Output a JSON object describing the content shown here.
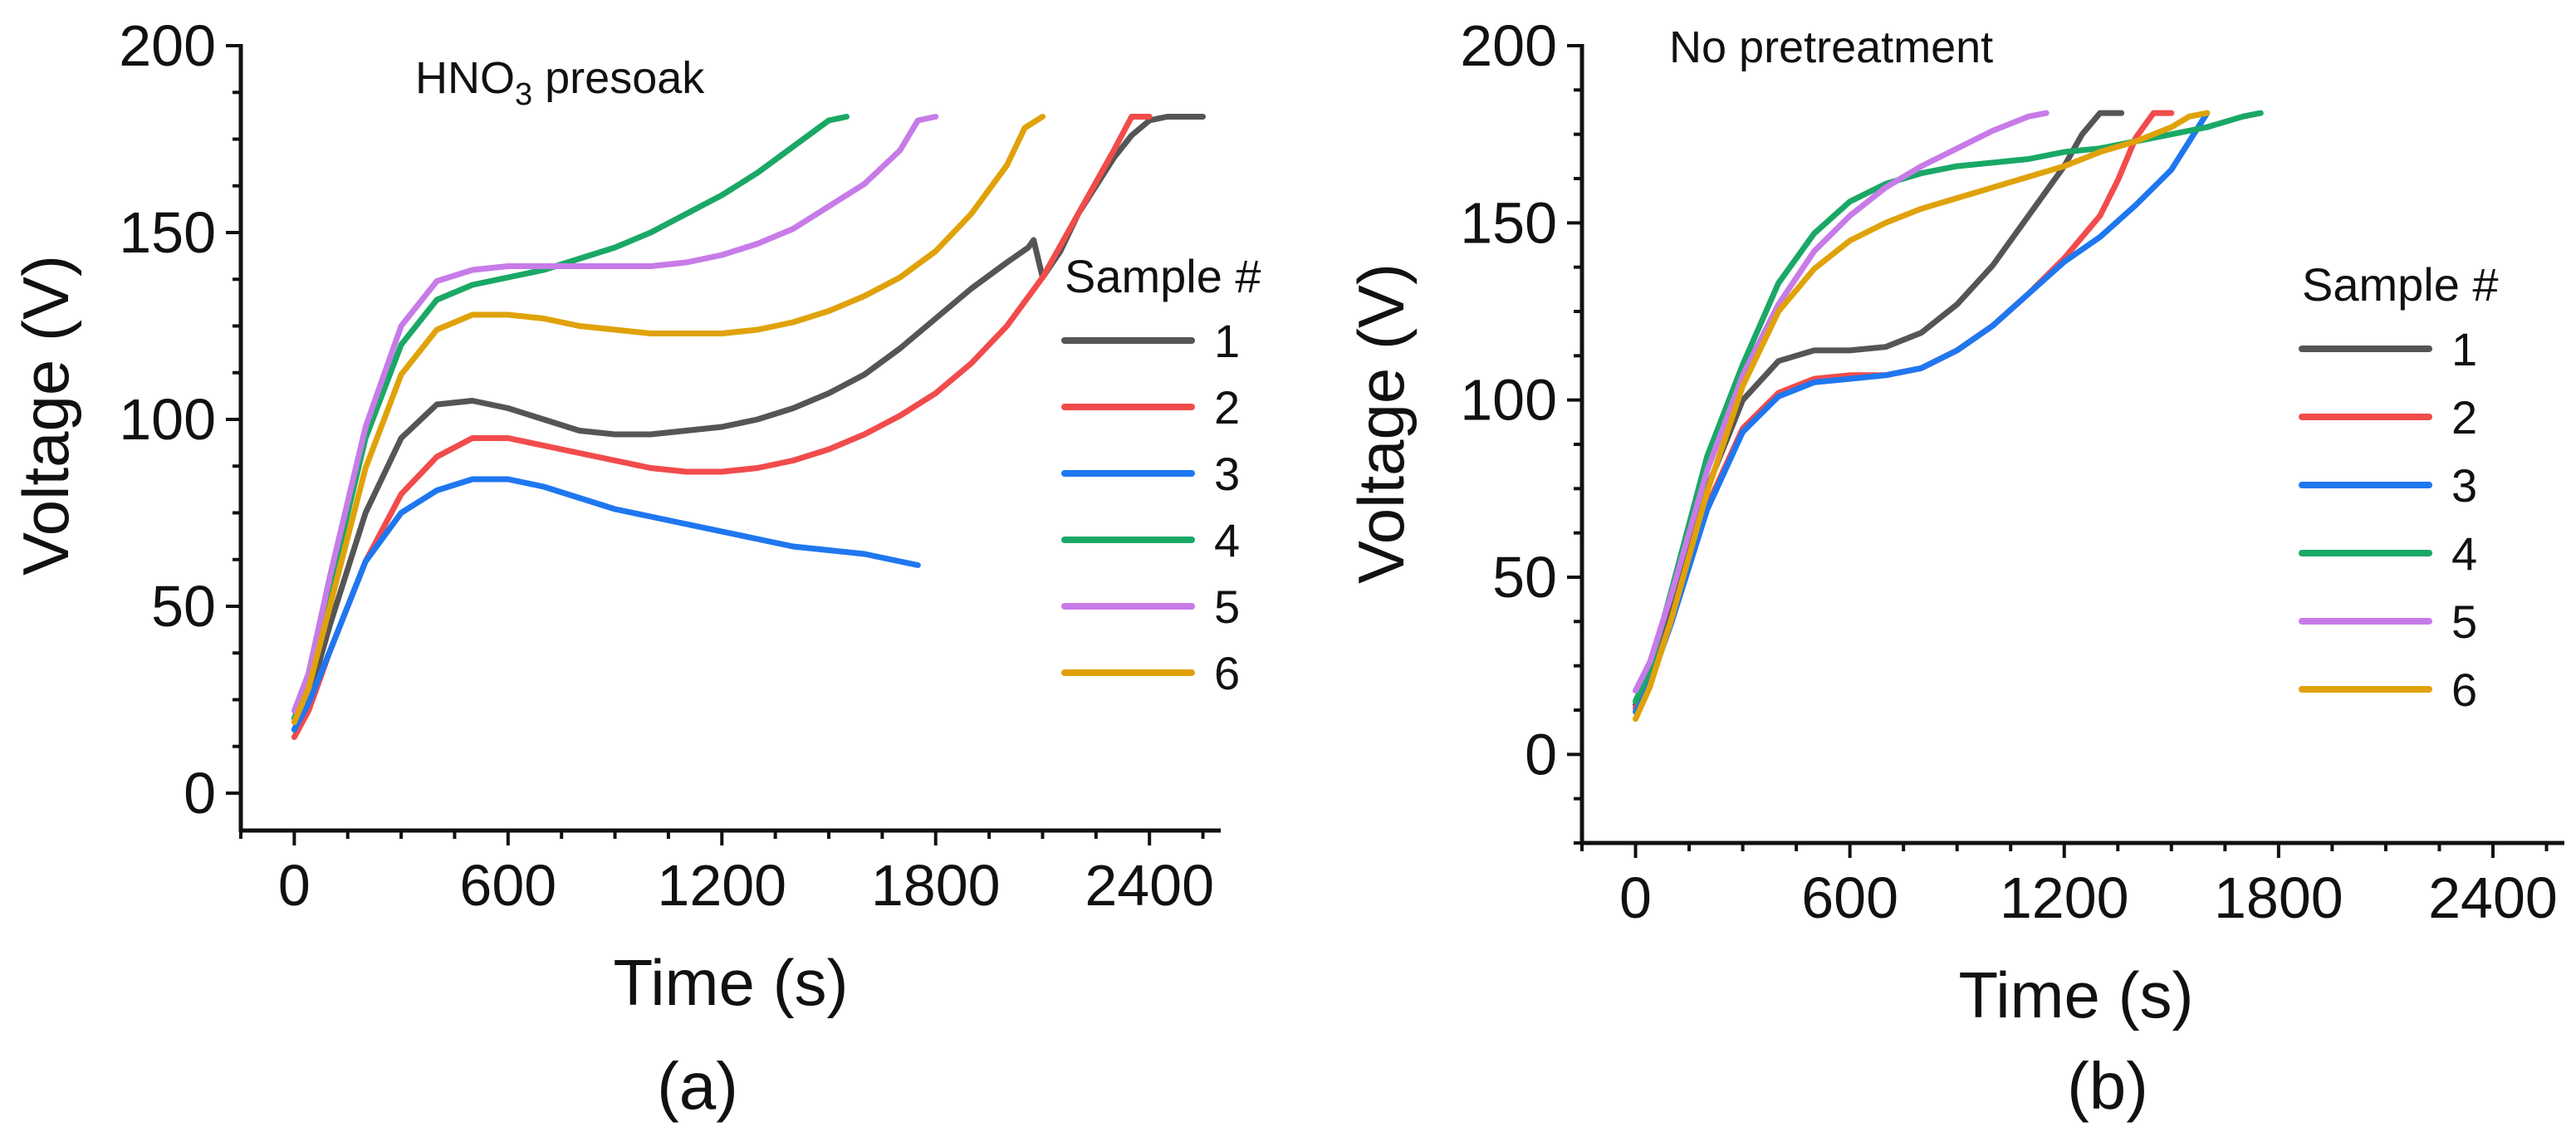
{
  "chart_data": [
    {
      "type": "line",
      "panel_label": "(a)",
      "annotation": {
        "main": "HNO",
        "subscript": "3",
        "rest": " presoak"
      },
      "xlabel": "Time (s)",
      "ylabel": "Voltage (V)",
      "xlim": [
        -150,
        2600
      ],
      "ylim": [
        -10,
        200
      ],
      "xticks": [
        0,
        600,
        1200,
        1800,
        2400
      ],
      "yticks": [
        0,
        50,
        100,
        150,
        200
      ],
      "legend": {
        "title": "Sample #",
        "position": "right"
      },
      "series": [
        {
          "name": "1",
          "color": "#555555",
          "x": [
            0,
            40,
            100,
            200,
            300,
            400,
            500,
            600,
            700,
            800,
            900,
            1000,
            1100,
            1200,
            1300,
            1400,
            1500,
            1600,
            1700,
            1800,
            1900,
            2000,
            2060,
            2075,
            2085,
            2100,
            2150,
            2200,
            2300,
            2350,
            2400,
            2450,
            2500,
            2550
          ],
          "y": [
            17,
            25,
            45,
            75,
            95,
            104,
            105,
            103,
            100,
            97,
            96,
            96,
            97,
            98,
            100,
            103,
            107,
            112,
            119,
            127,
            135,
            142,
            146,
            148,
            144,
            138,
            145,
            155,
            170,
            176,
            180,
            181,
            181,
            181
          ]
        },
        {
          "name": "2",
          "color": "#f24b4b",
          "x": [
            0,
            40,
            100,
            200,
            300,
            400,
            500,
            600,
            700,
            800,
            900,
            1000,
            1100,
            1200,
            1300,
            1400,
            1500,
            1600,
            1700,
            1800,
            1900,
            2000,
            2100,
            2200,
            2300,
            2350,
            2400
          ],
          "y": [
            15,
            22,
            38,
            62,
            80,
            90,
            95,
            95,
            93,
            91,
            89,
            87,
            86,
            86,
            87,
            89,
            92,
            96,
            101,
            107,
            115,
            125,
            138,
            155,
            172,
            181,
            181
          ]
        },
        {
          "name": "3",
          "color": "#1f77f0",
          "x": [
            0,
            40,
            100,
            200,
            300,
            400,
            500,
            600,
            700,
            800,
            900,
            1000,
            1100,
            1200,
            1300,
            1400,
            1500,
            1600,
            1700,
            1750
          ],
          "y": [
            17,
            24,
            38,
            62,
            75,
            81,
            84,
            84,
            82,
            79,
            76,
            74,
            72,
            70,
            68,
            66,
            65,
            64,
            62,
            61
          ]
        },
        {
          "name": "4",
          "color": "#1aa866",
          "x": [
            0,
            40,
            100,
            200,
            300,
            400,
            500,
            600,
            700,
            800,
            900,
            1000,
            1100,
            1200,
            1300,
            1400,
            1500,
            1550
          ],
          "y": [
            20,
            30,
            55,
            95,
            120,
            132,
            136,
            138,
            140,
            143,
            146,
            150,
            155,
            160,
            166,
            173,
            180,
            181
          ]
        },
        {
          "name": "5",
          "color": "#c77be8",
          "x": [
            0,
            40,
            100,
            200,
            300,
            400,
            500,
            600,
            700,
            800,
            900,
            1000,
            1100,
            1200,
            1300,
            1400,
            1500,
            1600,
            1700,
            1750,
            1800
          ],
          "y": [
            22,
            32,
            58,
            98,
            125,
            137,
            140,
            141,
            141,
            141,
            141,
            141,
            142,
            144,
            147,
            151,
            157,
            163,
            172,
            180,
            181
          ]
        },
        {
          "name": "6",
          "color": "#e0a20a",
          "x": [
            0,
            40,
            100,
            200,
            300,
            400,
            500,
            600,
            700,
            800,
            900,
            1000,
            1100,
            1200,
            1300,
            1400,
            1500,
            1600,
            1700,
            1800,
            1900,
            2000,
            2050,
            2100
          ],
          "y": [
            19,
            28,
            50,
            87,
            112,
            124,
            128,
            128,
            127,
            125,
            124,
            123,
            123,
            123,
            124,
            126,
            129,
            133,
            138,
            145,
            155,
            168,
            178,
            181
          ]
        }
      ]
    },
    {
      "type": "line",
      "panel_label": "(b)",
      "annotation": {
        "main": "No pretreatment",
        "subscript": "",
        "rest": ""
      },
      "xlabel": "Time (s)",
      "ylabel": "Voltage (V)",
      "xlim": [
        -150,
        2600
      ],
      "ylim": [
        -25,
        200
      ],
      "xticks": [
        0,
        600,
        1200,
        1800,
        2400
      ],
      "yticks": [
        0,
        50,
        100,
        150,
        200
      ],
      "legend": {
        "title": "Sample #",
        "position": "right"
      },
      "series": [
        {
          "name": "1",
          "color": "#555555",
          "x": [
            0,
            40,
            100,
            200,
            300,
            400,
            500,
            600,
            700,
            800,
            900,
            1000,
            1100,
            1200,
            1250,
            1300,
            1330,
            1360
          ],
          "y": [
            14,
            22,
            40,
            75,
            100,
            111,
            114,
            114,
            115,
            119,
            127,
            138,
            152,
            166,
            175,
            181,
            181,
            181
          ]
        },
        {
          "name": "2",
          "color": "#f24b4b",
          "x": [
            0,
            40,
            100,
            200,
            300,
            400,
            500,
            600,
            700,
            800,
            900,
            1000,
            1100,
            1200,
            1300,
            1350,
            1400,
            1450,
            1500
          ],
          "y": [
            13,
            20,
            38,
            70,
            92,
            102,
            106,
            107,
            107,
            109,
            114,
            121,
            130,
            140,
            152,
            162,
            174,
            181,
            181
          ]
        },
        {
          "name": "3",
          "color": "#1f77f0",
          "x": [
            0,
            40,
            100,
            200,
            300,
            400,
            500,
            600,
            700,
            800,
            900,
            1000,
            1100,
            1200,
            1300,
            1400,
            1500,
            1550,
            1600
          ],
          "y": [
            12,
            20,
            37,
            69,
            91,
            101,
            105,
            106,
            107,
            109,
            114,
            121,
            130,
            139,
            146,
            155,
            165,
            173,
            181
          ]
        },
        {
          "name": "4",
          "color": "#1aa866",
          "x": [
            0,
            40,
            100,
            200,
            300,
            400,
            500,
            600,
            700,
            800,
            900,
            1000,
            1100,
            1200,
            1300,
            1400,
            1500,
            1600,
            1700,
            1750
          ],
          "y": [
            15,
            24,
            46,
            84,
            110,
            133,
            147,
            156,
            161,
            164,
            166,
            167,
            168,
            170,
            171,
            173,
            175,
            177,
            180,
            181
          ]
        },
        {
          "name": "5",
          "color": "#c77be8",
          "x": [
            0,
            40,
            100,
            200,
            300,
            400,
            500,
            600,
            700,
            800,
            900,
            1000,
            1100,
            1150
          ],
          "y": [
            18,
            26,
            45,
            80,
            107,
            127,
            142,
            152,
            160,
            166,
            171,
            176,
            180,
            181
          ]
        },
        {
          "name": "6",
          "color": "#e0a20a",
          "x": [
            0,
            40,
            100,
            200,
            300,
            400,
            500,
            600,
            700,
            800,
            900,
            1000,
            1100,
            1200,
            1300,
            1400,
            1500,
            1550,
            1600
          ],
          "y": [
            10,
            19,
            38,
            74,
            104,
            125,
            137,
            145,
            150,
            154,
            157,
            160,
            163,
            166,
            170,
            173,
            177,
            180,
            181
          ]
        }
      ]
    }
  ]
}
